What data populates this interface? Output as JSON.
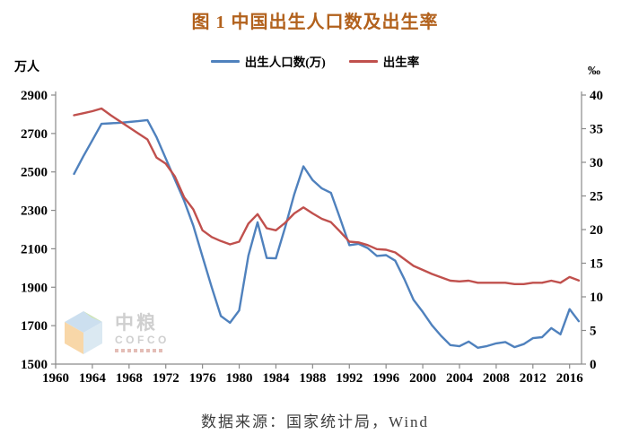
{
  "page": {
    "title": "图 1 中国出生人口数及出生率",
    "source_note": "数据来源：国家统计局，Wind"
  },
  "colors": {
    "title": "#b2611c",
    "births_line": "#4f81bd",
    "rate_line": "#c0504d",
    "axis": "#8a8a8a",
    "tick_text": "#000000",
    "source_text": "#3d3d3d",
    "watermark_text": "#b3b3b3"
  },
  "legend": {
    "items": [
      {
        "label": "出生人口数(万)",
        "color": "#4f81bd"
      },
      {
        "label": "出生率",
        "color": "#c0504d"
      }
    ]
  },
  "axes": {
    "left_unit": "万人",
    "right_unit": "‰"
  },
  "watermark": {
    "cn": "中粮",
    "en": "COFCO"
  },
  "chart_data": {
    "type": "line",
    "title": "图 1 中国出生人口数及出生率",
    "grid": false,
    "legend_position": "top",
    "x": [
      1962,
      1963,
      1964,
      1965,
      1966,
      1967,
      1968,
      1969,
      1970,
      1971,
      1972,
      1973,
      1974,
      1975,
      1976,
      1977,
      1978,
      1979,
      1980,
      1981,
      1982,
      1983,
      1984,
      1985,
      1986,
      1987,
      1988,
      1989,
      1990,
      1991,
      1992,
      1993,
      1994,
      1995,
      1996,
      1997,
      1998,
      1999,
      2000,
      2001,
      2002,
      2003,
      2004,
      2005,
      2006,
      2007,
      2008,
      2009,
      2010,
      2011,
      2012,
      2013,
      2014,
      2015,
      2016,
      2017
    ],
    "series": [
      {
        "name": "出生人口数(万)",
        "axis": "left",
        "color": "#4f81bd",
        "values": [
          2490,
          2580,
          2665,
          2750,
          2753,
          2756,
          2760,
          2764,
          2770,
          2680,
          2570,
          2460,
          2350,
          2220,
          2060,
          1900,
          1750,
          1715,
          1779,
          2064,
          2238,
          2052,
          2050,
          2211,
          2384,
          2529,
          2457,
          2414,
          2391,
          2258,
          2119,
          2126,
          2104,
          2063,
          2067,
          2038,
          1942,
          1834,
          1771,
          1702,
          1647,
          1599,
          1593,
          1617,
          1585,
          1594,
          1608,
          1615,
          1588,
          1604,
          1635,
          1640,
          1687,
          1655,
          1786,
          1723
        ]
      },
      {
        "name": "出生率",
        "axis": "right",
        "color": "#c0504d",
        "values": [
          37.0,
          37.3,
          37.6,
          38.0,
          37.0,
          36.1,
          35.2,
          34.3,
          33.4,
          30.7,
          29.8,
          27.9,
          24.8,
          23.0,
          19.9,
          18.9,
          18.3,
          17.8,
          18.2,
          20.9,
          22.3,
          20.2,
          19.9,
          21.0,
          22.4,
          23.3,
          22.4,
          21.6,
          21.1,
          19.7,
          18.2,
          18.1,
          17.7,
          17.1,
          17.0,
          16.6,
          15.6,
          14.6,
          14.0,
          13.4,
          12.9,
          12.4,
          12.3,
          12.4,
          12.1,
          12.1,
          12.1,
          12.1,
          11.9,
          11.9,
          12.1,
          12.1,
          12.4,
          12.1,
          12.95,
          12.43
        ]
      }
    ],
    "x_axis": {
      "range": [
        1960,
        2017.3
      ],
      "ticks": [
        1960,
        1964,
        1968,
        1972,
        1976,
        1980,
        1984,
        1988,
        1992,
        1996,
        2000,
        2004,
        2008,
        2012,
        2016
      ]
    },
    "left_axis": {
      "label": "万人",
      "range": [
        1500,
        2900
      ],
      "ticks": [
        1500,
        1700,
        1900,
        2100,
        2300,
        2500,
        2700,
        2900
      ]
    },
    "right_axis": {
      "label": "‰",
      "range": [
        0,
        40
      ],
      "ticks": [
        0,
        5,
        10,
        15,
        20,
        25,
        30,
        35,
        40
      ]
    }
  }
}
